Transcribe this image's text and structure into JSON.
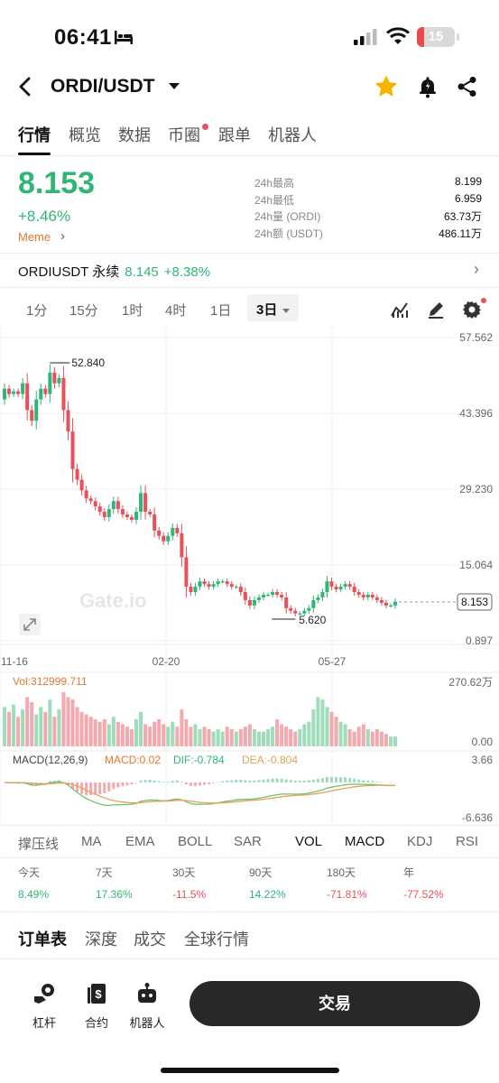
{
  "status_bar": {
    "time": "06:41",
    "battery": "15"
  },
  "header": {
    "pair": "ORDI/USDT"
  },
  "tabs": [
    {
      "label": "行情",
      "active": true
    },
    {
      "label": "概览"
    },
    {
      "label": "数据"
    },
    {
      "label": "币圈",
      "dot": true
    },
    {
      "label": "跟单"
    },
    {
      "label": "机器人"
    }
  ],
  "ticker": {
    "price": "8.153",
    "change": "+8.46%",
    "tag": "Meme",
    "stats": [
      {
        "label": "24h最高",
        "value": "8.199"
      },
      {
        "label": "24h最低",
        "value": "6.959"
      },
      {
        "label": "24h量 (ORDI)",
        "value": "63.73万"
      },
      {
        "label": "24h额 (USDT)",
        "value": "486.11万"
      }
    ]
  },
  "perpetual": {
    "name": "ORDIUSDT 永续",
    "price": "8.145",
    "change": "+8.38%"
  },
  "intervals": [
    "1分",
    "15分",
    "1时",
    "4时",
    "1日",
    "3日"
  ],
  "selected_interval": "3日",
  "chart_labels": {
    "high_mark": "52.840",
    "low_mark": "5.620",
    "last_price": "8.153",
    "watermark": "Gate.io",
    "vol_label": "Vol:312999.711",
    "macd_label": "MACD(12,26,9)",
    "macd_value": "MACD:0.02",
    "dif_value": "DIF:-0.784",
    "dea_value": "DEA:-0.804"
  },
  "chart_data": {
    "type": "candlestick",
    "x_ticks": [
      "11-16",
      "02-20",
      "05-27"
    ],
    "price_axis_ticks": [
      "57.562",
      "43.396",
      "29.230",
      "15.064",
      "0.897"
    ],
    "price_range": [
      0.897,
      57.562
    ],
    "volume_axis_ticks": [
      "270.62万",
      "0.00"
    ],
    "macd_axis_ticks": [
      "3.66",
      "-6.636"
    ],
    "high": 52.84,
    "low": 5.62,
    "last": 8.153,
    "closes": [
      48,
      47,
      47.5,
      47,
      49,
      44,
      42,
      46,
      48,
      47,
      51,
      49,
      50,
      44,
      40,
      33,
      31,
      29,
      27.5,
      27,
      26,
      25,
      24,
      25.5,
      27,
      25.5,
      24.5,
      24,
      23.5,
      25,
      28.5,
      25,
      24.5,
      21.5,
      20.5,
      19.5,
      20.5,
      22,
      21,
      16.5,
      11,
      10,
      11,
      12,
      11.5,
      11,
      11.5,
      12,
      12,
      11.5,
      11,
      11,
      10,
      8.5,
      7.5,
      8.5,
      9,
      9.5,
      9.5,
      10,
      9.5,
      9,
      7,
      6.5,
      6,
      6,
      6.5,
      7,
      8.5,
      9,
      10,
      12,
      11,
      10.5,
      11,
      11.5,
      11,
      10,
      9.5,
      9,
      9.5,
      9,
      8.5,
      8,
      7.5,
      7.5,
      8.2
    ],
    "volume": [
      80,
      70,
      85,
      60,
      75,
      100,
      90,
      65,
      80,
      70,
      95,
      60,
      75,
      110,
      100,
      95,
      80,
      70,
      65,
      60,
      55,
      50,
      55,
      45,
      60,
      50,
      45,
      40,
      35,
      55,
      70,
      45,
      40,
      50,
      55,
      45,
      40,
      50,
      40,
      75,
      55,
      40,
      45,
      35,
      40,
      35,
      30,
      35,
      30,
      40,
      35,
      30,
      35,
      40,
      45,
      35,
      30,
      30,
      35,
      40,
      55,
      45,
      40,
      35,
      30,
      35,
      45,
      50,
      75,
      100,
      95,
      80,
      70,
      60,
      50,
      45,
      35,
      30,
      40,
      45,
      35,
      30,
      35,
      30,
      25,
      20,
      20
    ],
    "volume_unit": "万",
    "volume_max_label": 270.62
  },
  "indicators": [
    "撑压线",
    "MA",
    "EMA",
    "BOLL",
    "SAR",
    "VOL",
    "MACD",
    "KDJ",
    "RSI"
  ],
  "active_indicators": [
    "VOL",
    "MACD"
  ],
  "performance": [
    {
      "label": "今天",
      "value": "8.49%",
      "dir": "up"
    },
    {
      "label": "7天",
      "value": "17.36%",
      "dir": "up"
    },
    {
      "label": "30天",
      "value": "-11.5%",
      "dir": "down"
    },
    {
      "label": "90天",
      "value": "14.22%",
      "dir": "up"
    },
    {
      "label": "180天",
      "value": "-71.81%",
      "dir": "down"
    },
    {
      "label": "年",
      "value": "-77.52%",
      "dir": "down"
    }
  ],
  "order_tabs": [
    "订单表",
    "深度",
    "成交",
    "全球行情"
  ],
  "bottom_bar": {
    "leverage": "杠杆",
    "contract": "合约",
    "bot": "机器人",
    "trade": "交易"
  },
  "colors": {
    "up": "#2fb676",
    "down": "#e8505b",
    "accent": "#f5b400"
  },
  "icons": [
    "back-arrow-icon",
    "caret-down-icon",
    "star-icon",
    "bell-icon",
    "share-icon",
    "indicator-icon",
    "pen-icon",
    "gear-icon",
    "expand-icon",
    "leverage-icon",
    "contract-icon",
    "robot-icon"
  ]
}
